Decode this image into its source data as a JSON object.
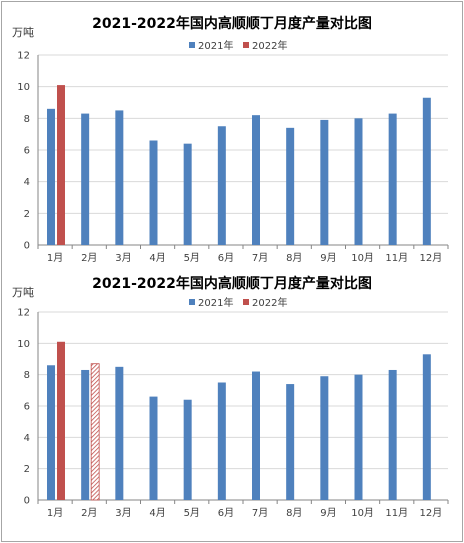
{
  "chart_data": [
    {
      "type": "bar",
      "title": "2021-2022年国内高顺顺丁月度产量对比图",
      "ylabel": "万吨",
      "ylim": [
        0,
        12
      ],
      "yticks": [
        0,
        2,
        4,
        6,
        8,
        10,
        12
      ],
      "grid": true,
      "legend_position": "top",
      "categories": [
        "1月",
        "2月",
        "3月",
        "4月",
        "5月",
        "6月",
        "7月",
        "8月",
        "9月",
        "10月",
        "11月",
        "12月"
      ],
      "series": [
        {
          "name": "2021年",
          "color": "#4f81bd",
          "values": [
            8.6,
            8.3,
            8.5,
            6.6,
            6.4,
            7.5,
            8.2,
            7.4,
            7.9,
            8.0,
            8.3,
            9.3
          ]
        },
        {
          "name": "2022年",
          "color": "#c0504d",
          "values": [
            10.1,
            null,
            null,
            null,
            null,
            null,
            null,
            null,
            null,
            null,
            null,
            null
          ]
        }
      ]
    },
    {
      "type": "bar",
      "title": "2021-2022年国内高顺顺丁月度产量对比图",
      "ylabel": "万吨",
      "ylim": [
        0,
        12
      ],
      "yticks": [
        0,
        2,
        4,
        6,
        8,
        10,
        12
      ],
      "grid": true,
      "legend_position": "top",
      "categories": [
        "1月",
        "2月",
        "3月",
        "4月",
        "5月",
        "6月",
        "7月",
        "8月",
        "9月",
        "10月",
        "11月",
        "12月"
      ],
      "series": [
        {
          "name": "2021年",
          "color": "#4f81bd",
          "values": [
            8.6,
            8.3,
            8.5,
            6.6,
            6.4,
            7.5,
            8.2,
            7.4,
            7.9,
            8.0,
            8.3,
            9.3
          ]
        },
        {
          "name": "2022年",
          "color": "#c0504d",
          "values": [
            10.1,
            8.7,
            null,
            null,
            null,
            null,
            null,
            null,
            null,
            null,
            null,
            null
          ],
          "hatched": [
            false,
            true,
            false,
            false,
            false,
            false,
            false,
            false,
            false,
            false,
            false,
            false
          ]
        }
      ]
    }
  ]
}
